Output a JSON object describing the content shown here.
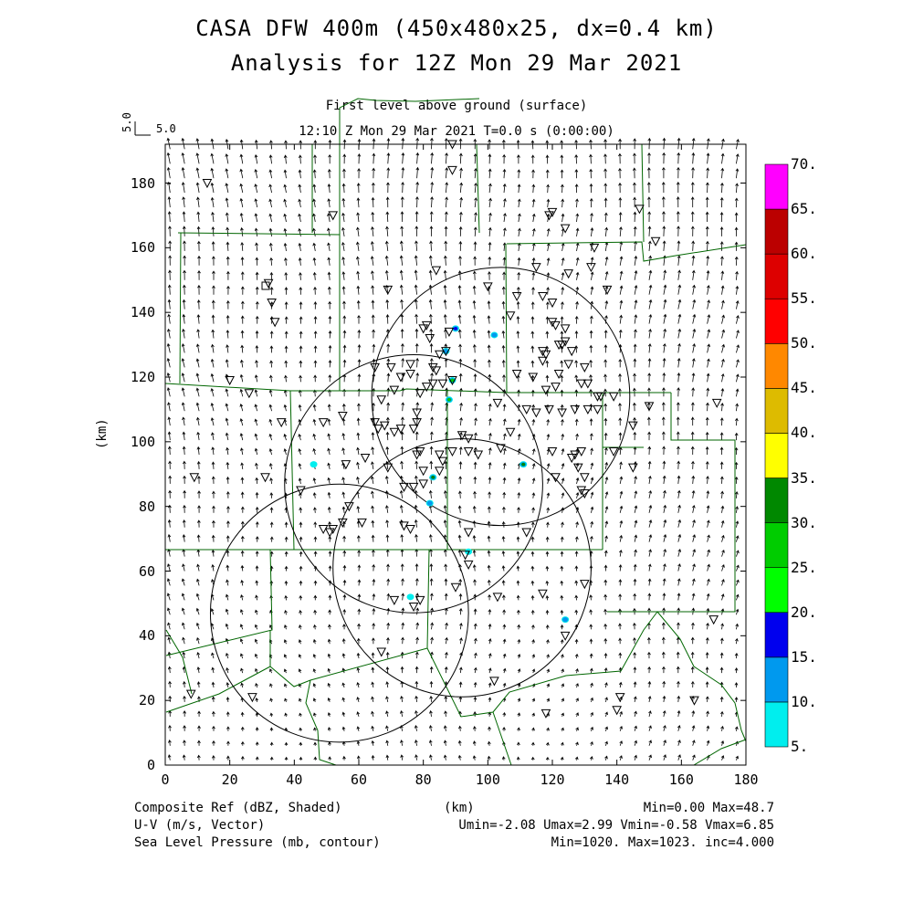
{
  "title": {
    "line1": "CASA DFW 400m (450x480x25, dx=0.4 km)",
    "line2": "Analysis for 12Z Mon 29 Mar 2021"
  },
  "subtitle": {
    "level": "First level above ground (surface)",
    "time": "12:10 Z Mon 29 Mar 2021    T=0.0 s (0:00:00)"
  },
  "vector_scale": {
    "vertical": "5.0",
    "horizontal": "5.0"
  },
  "axes": {
    "xlabel": "(km)",
    "ylabel": "(km)",
    "xlim": [
      0,
      180
    ],
    "ylim": [
      0,
      192
    ],
    "xticks": [
      "0",
      "20",
      "40",
      "60",
      "80",
      "100",
      "120",
      "140",
      "160",
      "180"
    ],
    "yticks": [
      "0",
      "20",
      "40",
      "60",
      "80",
      "100",
      "120",
      "140",
      "160",
      "180"
    ]
  },
  "colorbar": {
    "labels": [
      "5.",
      "10.",
      "15.",
      "20.",
      "25.",
      "30.",
      "35.",
      "40.",
      "45.",
      "50.",
      "55.",
      "60.",
      "65.",
      "70."
    ],
    "colors": [
      "#00eeee",
      "#0099ee",
      "#0000ee",
      "#00ff00",
      "#00cc00",
      "#008800",
      "#ffff00",
      "#ddbb00",
      "#ff8800",
      "#ff0000",
      "#dd0000",
      "#bb0000",
      "#ff00ff"
    ]
  },
  "footer": {
    "left1": "Composite Ref (dBZ, Shaded)",
    "left2": "U-V (m/s, Vector)",
    "left3": "Sea Level Pressure (mb, contour)",
    "center1": "(km)",
    "right1": "Min=0.00 Max=48.7",
    "right2": "Umin=-2.08 Umax=2.99 Vmin=-0.58 Vmax=6.85",
    "right3": "Min=1020. Max=1023. inc=4.000"
  },
  "radar_rings": [
    {
      "cx": 54,
      "cy": 47,
      "r": 40
    },
    {
      "cx": 77,
      "cy": 87,
      "r": 40
    },
    {
      "cx": 104,
      "cy": 114,
      "r": 40
    },
    {
      "cx": 92,
      "cy": 61,
      "r": 40
    }
  ],
  "echoes": [
    {
      "x": 90,
      "y": 135,
      "dbz": 18
    },
    {
      "x": 102,
      "y": 133,
      "dbz": 12
    },
    {
      "x": 87,
      "y": 128,
      "dbz": 14
    },
    {
      "x": 89,
      "y": 119,
      "dbz": 25
    },
    {
      "x": 88,
      "y": 113,
      "dbz": 28
    },
    {
      "x": 111,
      "y": 93,
      "dbz": 32
    },
    {
      "x": 83,
      "y": 89,
      "dbz": 30
    },
    {
      "x": 82,
      "y": 81,
      "dbz": 10
    },
    {
      "x": 46,
      "y": 93,
      "dbz": 8
    },
    {
      "x": 94,
      "y": 66,
      "dbz": 7
    },
    {
      "x": 76,
      "y": 52,
      "dbz": 9
    },
    {
      "x": 124,
      "y": 45,
      "dbz": 13
    }
  ],
  "stations": [
    [
      89,
      192
    ],
    [
      89,
      184
    ],
    [
      13,
      180
    ],
    [
      119,
      170
    ],
    [
      120,
      171
    ],
    [
      124,
      166
    ],
    [
      147,
      172
    ],
    [
      52,
      170
    ],
    [
      152,
      162
    ],
    [
      133,
      160
    ],
    [
      84,
      153
    ],
    [
      69,
      147
    ],
    [
      125,
      152
    ],
    [
      137,
      147
    ],
    [
      115,
      154
    ],
    [
      132,
      154
    ],
    [
      100,
      148
    ],
    [
      107,
      139
    ],
    [
      109,
      145
    ],
    [
      117,
      145
    ],
    [
      120,
      143
    ],
    [
      120,
      137
    ],
    [
      124,
      135
    ],
    [
      124,
      131
    ],
    [
      123,
      130
    ],
    [
      122,
      130
    ],
    [
      121,
      136
    ],
    [
      117,
      128
    ],
    [
      118,
      127
    ],
    [
      126,
      128
    ],
    [
      125,
      124
    ],
    [
      122,
      121
    ],
    [
      121,
      117
    ],
    [
      118,
      116
    ],
    [
      117,
      125
    ],
    [
      130,
      123
    ],
    [
      129,
      118
    ],
    [
      131,
      118
    ],
    [
      114,
      120
    ],
    [
      109,
      121
    ],
    [
      88,
      134
    ],
    [
      80,
      135
    ],
    [
      81,
      136
    ],
    [
      82,
      132
    ],
    [
      83,
      123
    ],
    [
      85,
      127
    ],
    [
      87,
      128
    ],
    [
      84,
      122
    ],
    [
      86,
      118
    ],
    [
      89,
      119
    ],
    [
      83,
      118
    ],
    [
      79,
      115
    ],
    [
      73,
      120
    ],
    [
      70,
      123
    ],
    [
      65,
      123
    ],
    [
      76,
      124
    ],
    [
      71,
      116
    ],
    [
      67,
      113
    ],
    [
      81,
      117
    ],
    [
      76,
      121
    ],
    [
      78,
      109
    ],
    [
      78,
      106
    ],
    [
      77,
      104
    ],
    [
      73,
      104
    ],
    [
      65,
      106
    ],
    [
      66,
      104
    ],
    [
      68,
      105
    ],
    [
      71,
      103
    ],
    [
      62,
      95
    ],
    [
      56,
      93
    ],
    [
      55,
      108
    ],
    [
      49,
      106
    ],
    [
      36,
      106
    ],
    [
      26,
      115
    ],
    [
      20,
      119
    ],
    [
      9,
      89
    ],
    [
      31,
      89
    ],
    [
      42,
      85
    ],
    [
      57,
      80
    ],
    [
      55,
      75
    ],
    [
      61,
      75
    ],
    [
      52,
      73
    ],
    [
      49,
      73
    ],
    [
      51,
      72
    ],
    [
      69,
      92
    ],
    [
      78,
      96
    ],
    [
      79,
      97
    ],
    [
      85,
      96
    ],
    [
      89,
      97
    ],
    [
      94,
      101
    ],
    [
      92,
      102
    ],
    [
      94,
      97
    ],
    [
      97,
      96
    ],
    [
      104,
      98
    ],
    [
      107,
      103
    ],
    [
      103,
      112
    ],
    [
      112,
      110
    ],
    [
      115,
      109
    ],
    [
      119,
      110
    ],
    [
      123,
      109
    ],
    [
      127,
      110
    ],
    [
      131,
      110
    ],
    [
      134,
      114
    ],
    [
      135,
      114
    ],
    [
      139,
      114
    ],
    [
      150,
      111
    ],
    [
      145,
      105
    ],
    [
      134,
      110
    ],
    [
      129,
      97
    ],
    [
      127,
      96
    ],
    [
      126,
      95
    ],
    [
      120,
      97
    ],
    [
      128,
      92
    ],
    [
      130,
      89
    ],
    [
      145,
      92
    ],
    [
      139,
      97
    ],
    [
      121,
      89
    ],
    [
      129,
      85
    ],
    [
      130,
      84
    ],
    [
      77,
      86
    ],
    [
      74,
      86
    ],
    [
      80,
      87
    ],
    [
      80,
      91
    ],
    [
      85,
      91
    ],
    [
      86,
      94
    ],
    [
      94,
      72
    ],
    [
      112,
      72
    ],
    [
      93,
      65
    ],
    [
      94,
      62
    ],
    [
      74,
      74
    ],
    [
      76,
      73
    ],
    [
      90,
      55
    ],
    [
      79,
      51
    ],
    [
      77,
      49
    ],
    [
      71,
      51
    ],
    [
      103,
      52
    ],
    [
      117,
      53
    ],
    [
      130,
      56
    ],
    [
      124,
      40
    ],
    [
      67,
      35
    ],
    [
      102,
      26
    ],
    [
      141,
      21
    ],
    [
      140,
      17
    ],
    [
      118,
      16
    ],
    [
      164,
      20
    ],
    [
      170,
      45
    ],
    [
      171,
      112
    ],
    [
      8,
      22
    ],
    [
      27,
      21
    ],
    [
      32,
      149
    ],
    [
      33,
      143
    ],
    [
      34,
      137
    ]
  ]
}
